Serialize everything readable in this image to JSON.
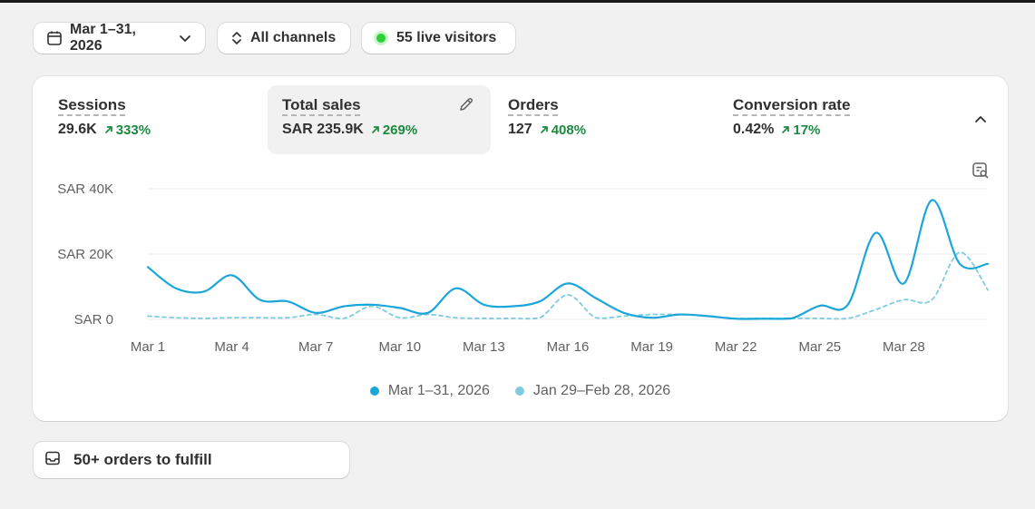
{
  "filters": {
    "date_range": "Mar 1–31, 2026",
    "channels": "All channels",
    "live_visitors": "55 live visitors"
  },
  "metrics": [
    {
      "label": "Sessions",
      "value": "29.6K",
      "change": "333%",
      "selected": false
    },
    {
      "label": "Total sales",
      "value": "SAR 235.9K",
      "change": "269%",
      "selected": true
    },
    {
      "label": "Orders",
      "value": "127",
      "change": "408%",
      "selected": false
    },
    {
      "label": "Conversion rate",
      "value": "0.42%",
      "change": "17%",
      "selected": false
    }
  ],
  "legend": {
    "current": "Mar 1–31, 2026",
    "previous": "Jan 29–Feb 28, 2026"
  },
  "colors": {
    "current": "#1ba6d9",
    "previous": "#7fcbe0",
    "positive": "#1b8a3e",
    "live_dot": "#2dcf3a"
  },
  "icons": [
    "calendar-icon",
    "chevron-down-icon",
    "sort-arrows-icon",
    "pencil-icon",
    "chevron-up-icon",
    "chart-search-icon",
    "inbox-icon",
    "arrow-up-right-icon"
  ],
  "chart_data": {
    "type": "line",
    "x": [
      "Mar 1",
      "Mar 2",
      "Mar 3",
      "Mar 4",
      "Mar 5",
      "Mar 6",
      "Mar 7",
      "Mar 8",
      "Mar 9",
      "Mar 10",
      "Mar 11",
      "Mar 12",
      "Mar 13",
      "Mar 14",
      "Mar 15",
      "Mar 16",
      "Mar 17",
      "Mar 18",
      "Mar 19",
      "Mar 20",
      "Mar 21",
      "Mar 22",
      "Mar 23",
      "Mar 24",
      "Mar 25",
      "Mar 26",
      "Mar 27",
      "Mar 28",
      "Mar 29",
      "Mar 30",
      "Mar 31"
    ],
    "tick_labels": [
      "Mar 1",
      "Mar 4",
      "Mar 7",
      "Mar 10",
      "Mar 13",
      "Mar 16",
      "Mar 19",
      "Mar 22",
      "Mar 25",
      "Mar 28"
    ],
    "y_ticks": [
      "SAR 0",
      "SAR 20K",
      "SAR 40K"
    ],
    "ylim": [
      0,
      40000
    ],
    "series": [
      {
        "name": "Mar 1–31, 2026",
        "style": "solid",
        "values": [
          16000,
          9500,
          8500,
          13500,
          6000,
          5500,
          2000,
          4000,
          4500,
          3500,
          2000,
          9500,
          4500,
          4000,
          5500,
          11000,
          6500,
          2000,
          500,
          1500,
          1000,
          200,
          200,
          300,
          4200,
          4500,
          26500,
          11000,
          36500,
          17000,
          17000
        ]
      },
      {
        "name": "Jan 29–Feb 28, 2026",
        "style": "dashed",
        "values": [
          1000,
          500,
          300,
          500,
          500,
          500,
          1500,
          300,
          4000,
          500,
          1500,
          500,
          300,
          300,
          500,
          7500,
          500,
          1000,
          1500,
          1500,
          1000,
          300,
          300,
          300,
          300,
          300,
          3000,
          6000,
          6000,
          20500,
          9000
        ]
      }
    ],
    "grid": true,
    "legend_position": "bottom"
  }
}
